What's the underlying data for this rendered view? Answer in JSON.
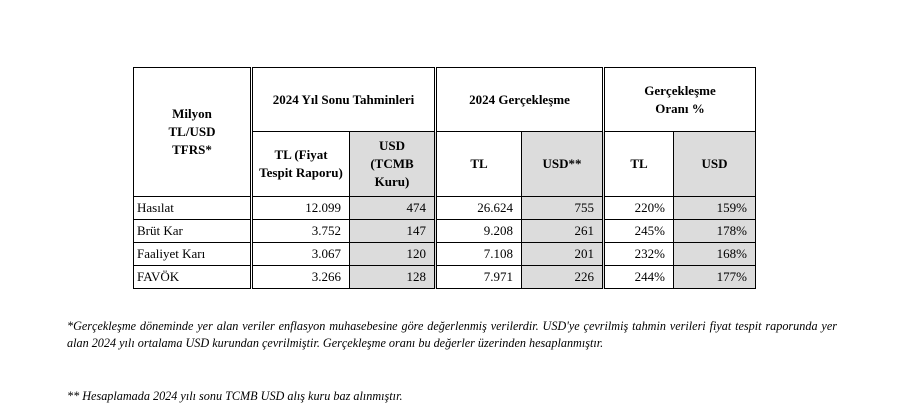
{
  "table": {
    "corner_header": "Milyon TL/USD TFRS*",
    "groups": [
      "2024 Yıl Sonu Tahminleri",
      "2024 Gerçekleşme",
      "Gerçekleşme Oranı %"
    ],
    "subheaders": [
      "TL (Fiyat Tespit Raporu)",
      "USD (TCMB Kuru)",
      "TL",
      "USD**",
      "TL",
      "USD"
    ],
    "rows": [
      {
        "label": "Hasılat",
        "cells": [
          "12.099",
          "474",
          "26.624",
          "755",
          "220%",
          "159%"
        ]
      },
      {
        "label": "Brüt Kar",
        "cells": [
          "3.752",
          "147",
          "9.208",
          "261",
          "245%",
          "178%"
        ]
      },
      {
        "label": "Faaliyet Karı",
        "cells": [
          "3.067",
          "120",
          "7.108",
          "201",
          "232%",
          "168%"
        ]
      },
      {
        "label": "FAVÖK",
        "cells": [
          "3.266",
          "128",
          "7.971",
          "226",
          "244%",
          "177%"
        ]
      }
    ]
  },
  "notes": {
    "note1": "*Gerçekleşme döneminde yer alan veriler enflasyon muhasebesine göre değerlenmiş verilerdir. USD'ye çevrilmiş tahmin verileri fiyat tespit raporunda yer alan 2024 yılı ortalama USD kurundan çevrilmiştir. Gerçekleşme oranı bu değerler üzerinden hesaplanmıştır.",
    "note2": "** Hesaplamada 2024 yılı sonu TCMB USD alış kuru baz alınmıştır."
  }
}
